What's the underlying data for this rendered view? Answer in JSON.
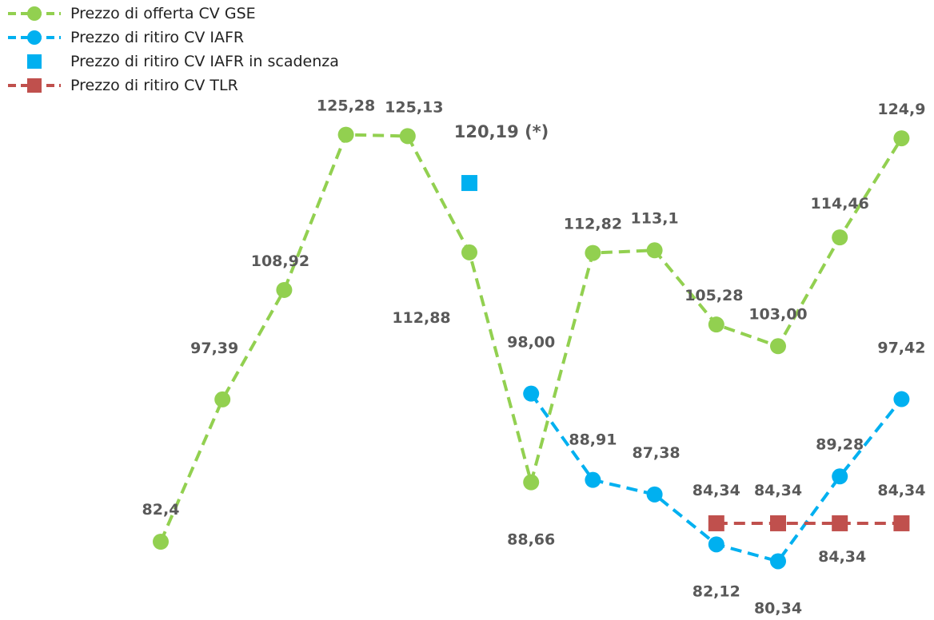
{
  "chart_data": {
    "type": "line",
    "x": [
      0,
      1,
      2,
      3,
      4,
      5,
      6,
      7,
      8,
      9,
      10,
      11,
      12
    ],
    "ylim": [
      74,
      130
    ],
    "grid": false,
    "legend_position": "top-left",
    "colors": {
      "gse": "#92D050",
      "iafr": "#00B0F0",
      "tlr": "#C0504D"
    },
    "series": [
      {
        "name": "Prezzo di offerta CV GSE",
        "key": "gse",
        "style": "dashed-line-circle",
        "points": [
          [
            1,
            82.4
          ],
          [
            2,
            97.39
          ],
          [
            3,
            108.92
          ],
          [
            4,
            125.28
          ],
          [
            5,
            125.13
          ],
          [
            6,
            112.88
          ],
          [
            7,
            88.66
          ],
          [
            8,
            112.82
          ],
          [
            9,
            113.1
          ],
          [
            10,
            105.28
          ],
          [
            11,
            103.0
          ],
          [
            12,
            114.46
          ],
          [
            13,
            124.9
          ]
        ]
      },
      {
        "name": "Prezzo di ritiro CV IAFR",
        "key": "iafr",
        "style": "dashed-line-circle",
        "points": [
          [
            7,
            98.0
          ],
          [
            8,
            88.91
          ],
          [
            9,
            87.38
          ],
          [
            10,
            82.12
          ],
          [
            11,
            80.34
          ],
          [
            12,
            89.28
          ],
          [
            13,
            97.42
          ]
        ]
      },
      {
        "name": "Prezzo di ritiro CV IAFR in scadenza",
        "key": "iafr",
        "style": "square-marker",
        "points": [
          [
            6,
            120.19
          ]
        ]
      },
      {
        "name": "Prezzo di ritiro CV TLR",
        "key": "tlr",
        "style": "dashed-line-square",
        "points": [
          [
            10,
            84.34
          ],
          [
            11,
            84.34
          ],
          [
            12,
            84.34
          ],
          [
            13,
            84.34
          ]
        ]
      }
    ],
    "data_labels": [
      {
        "text": "82,4",
        "series": "gse",
        "x": 1
      },
      {
        "text": "97,39",
        "series": "gse",
        "x": 2
      },
      {
        "text": "108,92",
        "series": "gse",
        "x": 3
      },
      {
        "text": "125,28",
        "series": "gse",
        "x": 4
      },
      {
        "text": "125,13",
        "series": "gse",
        "x": 5
      },
      {
        "text": "112,88",
        "series": "gse",
        "x": 6
      },
      {
        "text": "88,66",
        "series": "gse",
        "x": 7
      },
      {
        "text": "112,82",
        "series": "gse",
        "x": 8
      },
      {
        "text": "113,1",
        "series": "gse",
        "x": 9
      },
      {
        "text": "105,28",
        "series": "gse",
        "x": 10
      },
      {
        "text": "103,00",
        "series": "gse",
        "x": 11
      },
      {
        "text": "114,46",
        "series": "gse",
        "x": 12
      },
      {
        "text": "124,9",
        "series": "gse",
        "x": 13
      },
      {
        "text": "120,19 (*)",
        "series": "iafr-scadenza",
        "x": 6
      },
      {
        "text": "98,00",
        "series": "iafr",
        "x": 7
      },
      {
        "text": "88,91",
        "series": "iafr",
        "x": 8
      },
      {
        "text": "87,38",
        "series": "iafr",
        "x": 9
      },
      {
        "text": "82,12",
        "series": "iafr",
        "x": 10
      },
      {
        "text": "80,34",
        "series": "iafr",
        "x": 11
      },
      {
        "text": "89,28",
        "series": "iafr",
        "x": 12
      },
      {
        "text": "97,42",
        "series": "iafr",
        "x": 13
      },
      {
        "text": "84,34",
        "series": "tlr",
        "x": 10
      },
      {
        "text": "84,34",
        "series": "tlr",
        "x": 11
      },
      {
        "text": "84,34",
        "series": "tlr",
        "x": 12
      },
      {
        "text": "84,34",
        "series": "tlr",
        "x": 13
      }
    ]
  },
  "legend": {
    "items": [
      {
        "label": "Prezzo di offerta CV GSE",
        "key": "gse",
        "style": "dashed-line-circle"
      },
      {
        "label": "Prezzo di ritiro CV IAFR",
        "key": "iafr",
        "style": "dashed-line-circle"
      },
      {
        "label": "Prezzo di ritiro CV IAFR in scadenza",
        "key": "iafr",
        "style": "square-marker"
      },
      {
        "label": "Prezzo di ritiro CV TLR",
        "key": "tlr",
        "style": "dashed-line-square"
      }
    ]
  }
}
